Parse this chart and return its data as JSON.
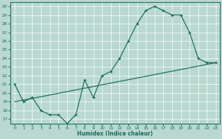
{
  "xlabel": "Humidex (Indice chaleur)",
  "xlim": [
    -0.5,
    23.5
  ],
  "ylim": [
    16.5,
    30.5
  ],
  "yticks": [
    17,
    18,
    19,
    20,
    21,
    22,
    23,
    24,
    25,
    26,
    27,
    28,
    29,
    30
  ],
  "xticks": [
    0,
    1,
    2,
    3,
    4,
    5,
    6,
    7,
    8,
    9,
    10,
    11,
    12,
    13,
    14,
    15,
    16,
    17,
    18,
    19,
    20,
    21,
    22,
    23
  ],
  "line_color": "#1a6b5e",
  "bg_color": "#b8d8d0",
  "zigzag_x": [
    0,
    1,
    2,
    3,
    4,
    5,
    6,
    7,
    8,
    9,
    10,
    11,
    12,
    13,
    14,
    15,
    16,
    17,
    18,
    19,
    20,
    21,
    22,
    23
  ],
  "zigzag_y": [
    21,
    19,
    19.5,
    18,
    17.5,
    17.5,
    16.5,
    17.5,
    21.5,
    19.5,
    22,
    22.5,
    24,
    26,
    28,
    29.5,
    30,
    29.5,
    29,
    29,
    27,
    24,
    23.5,
    23.5
  ],
  "trend_x": [
    0,
    23
  ],
  "trend_y": [
    19.0,
    23.5
  ]
}
